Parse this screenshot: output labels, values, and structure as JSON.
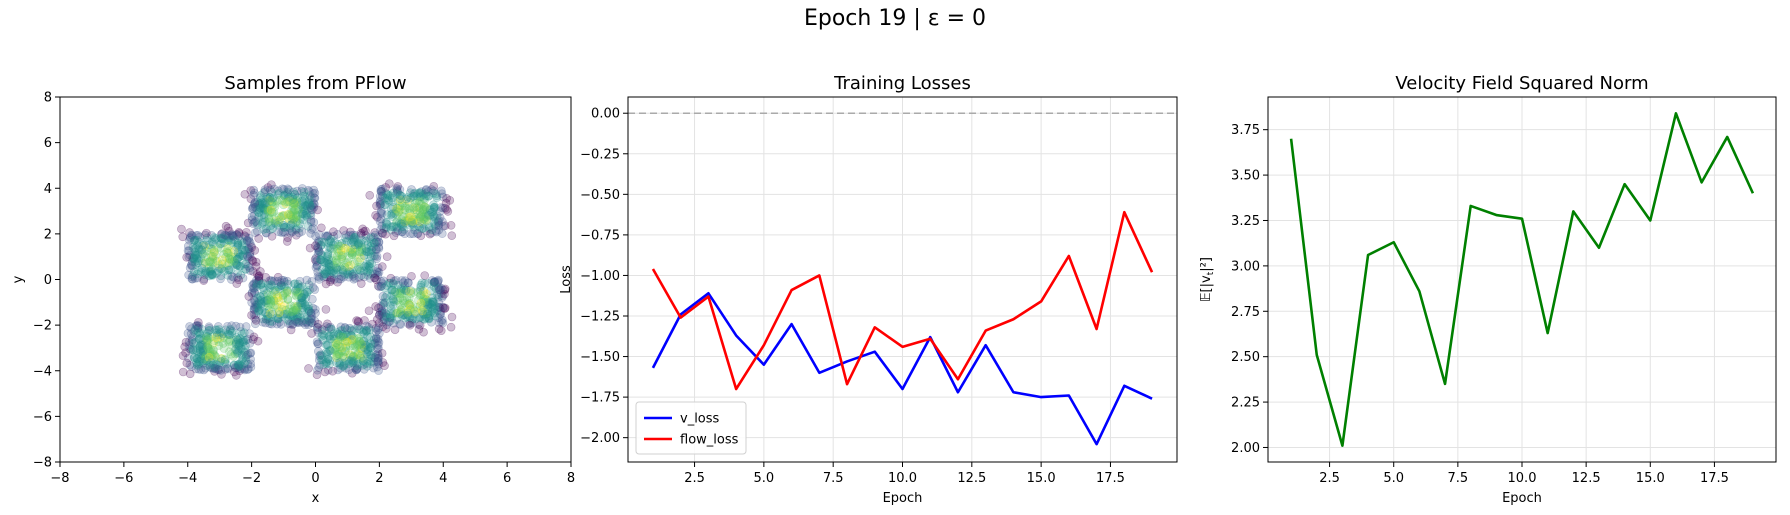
{
  "figure": {
    "title": "Epoch 19 | ε = 0"
  },
  "chart_data": [
    {
      "type": "scatter",
      "title": "Samples from PFlow",
      "xlabel": "x",
      "ylabel": "y",
      "xlim": [
        -8,
        8
      ],
      "ylim": [
        -8,
        8
      ],
      "xticks": [
        -8,
        -6,
        -4,
        -2,
        0,
        2,
        4,
        6,
        8
      ],
      "yticks": [
        -8,
        -6,
        -4,
        -2,
        0,
        2,
        4,
        6,
        8
      ],
      "grid": false,
      "colormap": "viridis",
      "marker_alpha": 0.25,
      "clusters": [
        {
          "x": [
            -2,
            0
          ],
          "y": [
            2,
            4
          ]
        },
        {
          "x": [
            2,
            4
          ],
          "y": [
            2,
            4
          ]
        },
        {
          "x": [
            -4,
            -2
          ],
          "y": [
            0,
            2
          ]
        },
        {
          "x": [
            0,
            2
          ],
          "y": [
            0,
            2
          ]
        },
        {
          "x": [
            -2,
            0
          ],
          "y": [
            -2,
            0
          ]
        },
        {
          "x": [
            2,
            4
          ],
          "y": [
            -2,
            0
          ]
        },
        {
          "x": [
            -4,
            -2
          ],
          "y": [
            -4,
            -2
          ]
        },
        {
          "x": [
            0,
            2
          ],
          "y": [
            -4,
            -2
          ]
        }
      ]
    },
    {
      "type": "line",
      "title": "Training Losses",
      "xlabel": "Epoch",
      "ylabel": "Loss",
      "xlim": [
        0.1,
        19.9
      ],
      "ylim": [
        -2.15,
        0.1
      ],
      "xticks": [
        2.5,
        5.0,
        7.5,
        10.0,
        12.5,
        15.0,
        17.5
      ],
      "yticks": [
        0.0,
        -0.25,
        -0.5,
        -0.75,
        -1.0,
        -1.25,
        -1.5,
        -1.75,
        -2.0
      ],
      "grid": true,
      "reference_line": {
        "y": 0,
        "color": "#aaaaaa",
        "style": "dashed"
      },
      "legend": "lower-left",
      "x": [
        1,
        2,
        3,
        4,
        5,
        6,
        7,
        8,
        9,
        10,
        11,
        12,
        13,
        14,
        15,
        16,
        17,
        18,
        19
      ],
      "series": [
        {
          "name": "v_loss",
          "color": "#0000ff",
          "values": [
            -1.57,
            -1.24,
            -1.11,
            -1.37,
            -1.55,
            -1.3,
            -1.6,
            -1.53,
            -1.47,
            -1.7,
            -1.38,
            -1.72,
            -1.43,
            -1.72,
            -1.75,
            -1.74,
            -2.04,
            -1.68,
            -1.76
          ]
        },
        {
          "name": "flow_loss",
          "color": "#ff0000",
          "values": [
            -0.96,
            -1.26,
            -1.13,
            -1.7,
            -1.43,
            -1.09,
            -1.0,
            -1.67,
            -1.32,
            -1.44,
            -1.39,
            -1.64,
            -1.34,
            -1.27,
            -1.16,
            -0.88,
            -1.33,
            -0.61,
            -0.98
          ]
        }
      ]
    },
    {
      "type": "line",
      "title": "Velocity Field Squared Norm",
      "xlabel": "Epoch",
      "ylabel": "𝔼[|v_t|²]",
      "ylabel_main": "𝔼[|v",
      "ylabel_sub": "t",
      "ylabel_tail": "|²]",
      "xlim": [
        0.1,
        19.9
      ],
      "ylim": [
        1.92,
        3.93
      ],
      "xticks": [
        2.5,
        5.0,
        7.5,
        10.0,
        12.5,
        15.0,
        17.5
      ],
      "yticks": [
        2.0,
        2.25,
        2.5,
        2.75,
        3.0,
        3.25,
        3.5,
        3.75
      ],
      "grid": true,
      "x": [
        1,
        2,
        3,
        4,
        5,
        6,
        7,
        8,
        9,
        10,
        11,
        12,
        13,
        14,
        15,
        16,
        17,
        18,
        19
      ],
      "series": [
        {
          "color": "#008000",
          "values": [
            3.7,
            2.51,
            2.01,
            3.06,
            3.13,
            2.86,
            2.35,
            3.33,
            3.28,
            3.26,
            2.63,
            3.3,
            3.1,
            3.45,
            3.25,
            3.84,
            3.46,
            3.71,
            3.4
          ]
        }
      ]
    }
  ]
}
